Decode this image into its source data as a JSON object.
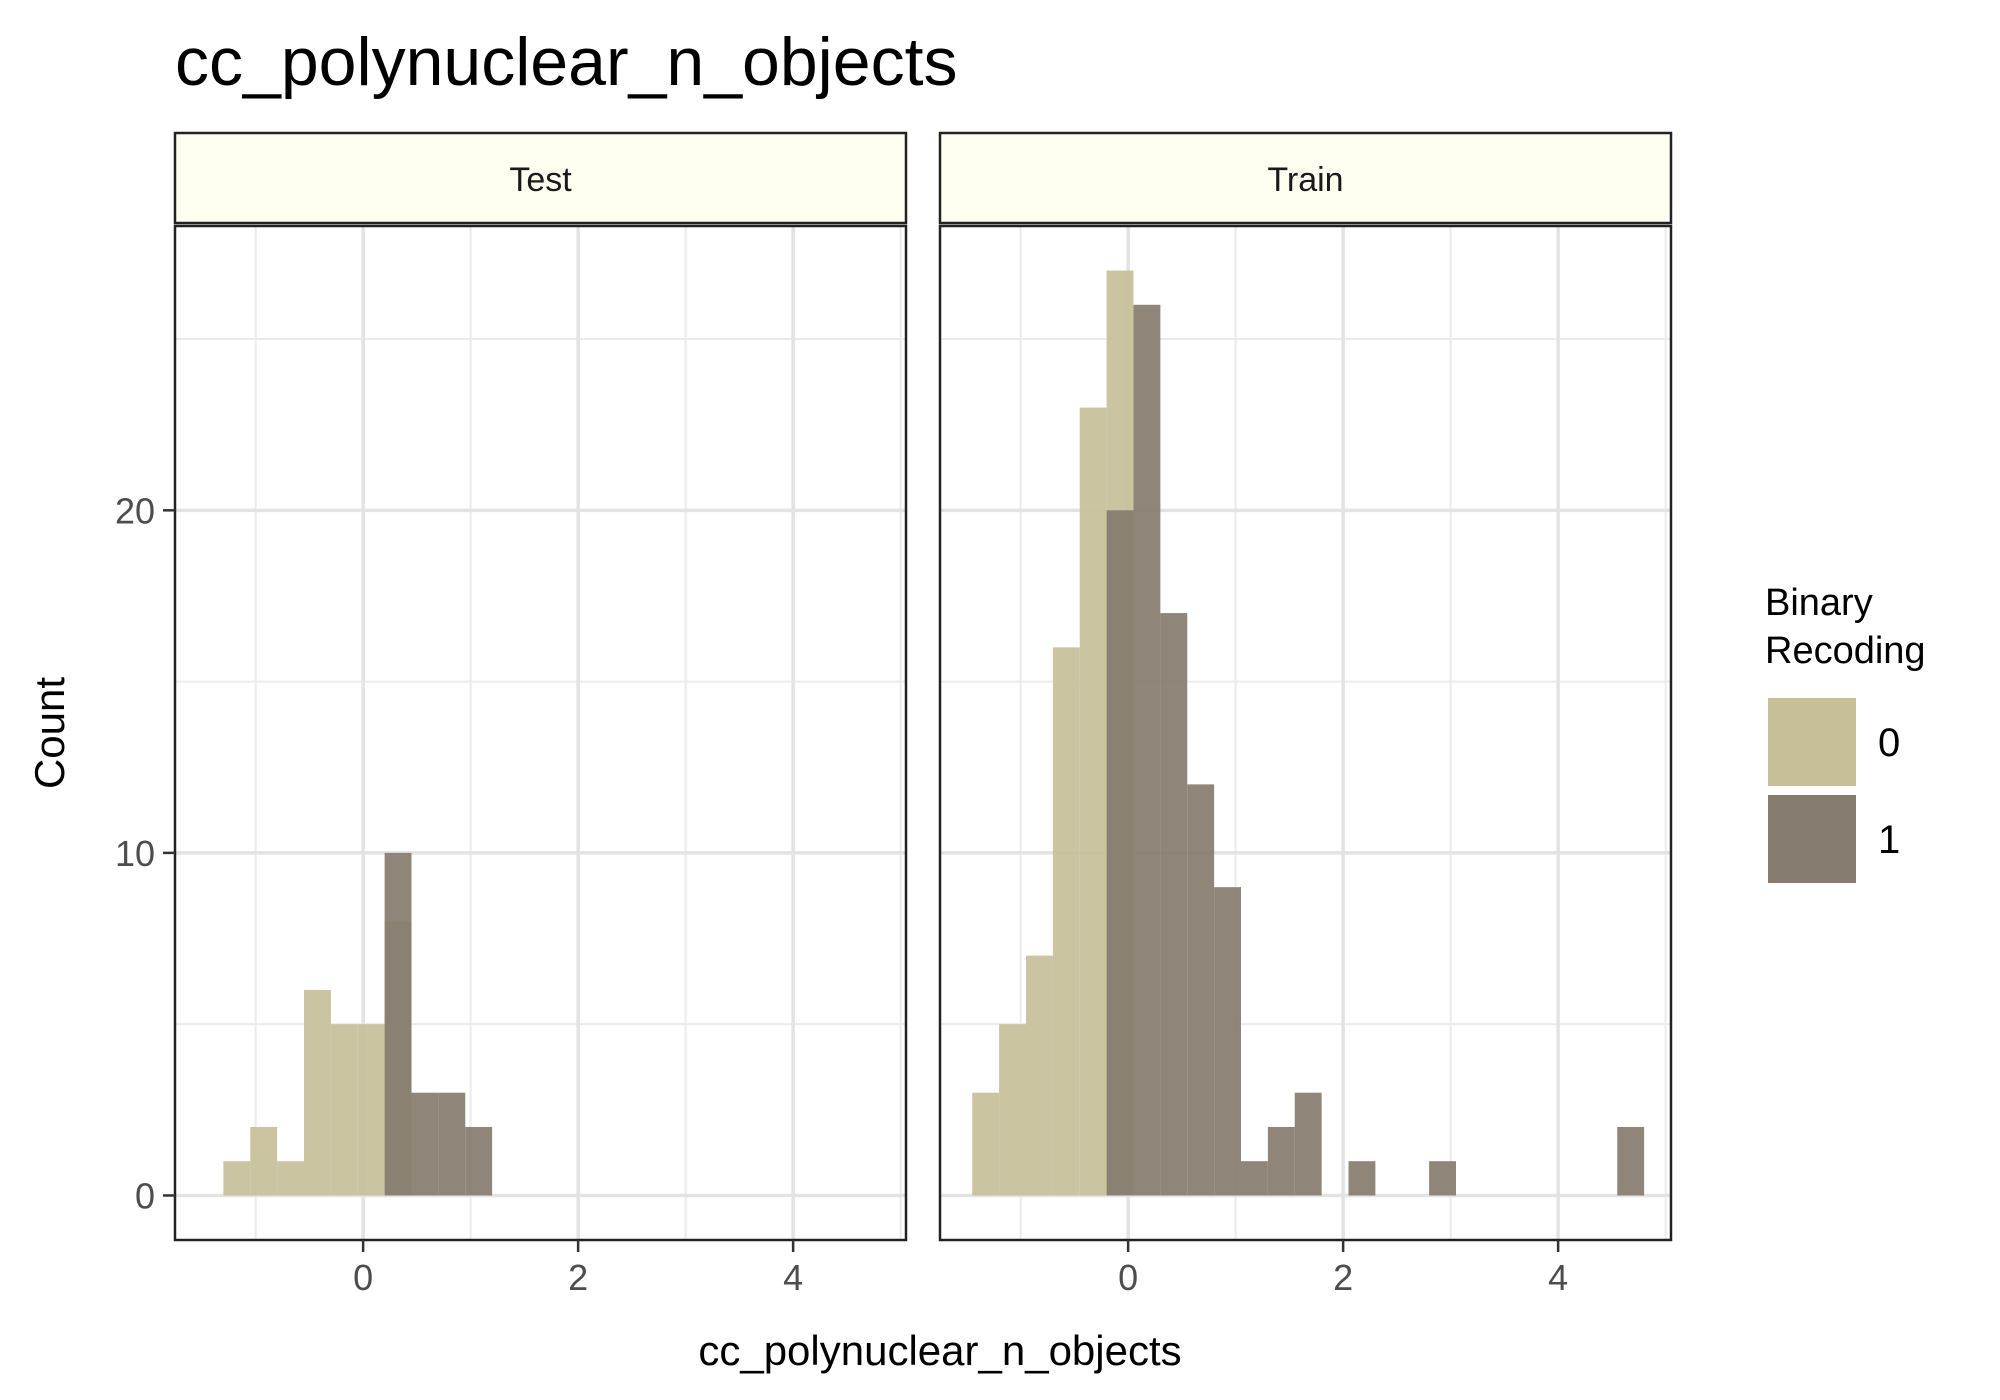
{
  "chart_data": {
    "type": "bar",
    "title": "cc_polynuclear_n_objects",
    "xlabel": "cc_polynuclear_n_objects",
    "ylabel": "Count",
    "xlim": [
      -1.75,
      5.05
    ],
    "ylim": [
      -1.3,
      28.3
    ],
    "x_ticks": [
      0,
      2,
      4
    ],
    "y_ticks": [
      0,
      10,
      20
    ],
    "bin_width": 0.25,
    "grid": true,
    "legend": {
      "title_lines": [
        "Binary",
        "Recoding"
      ],
      "placement": "right",
      "items": [
        {
          "label": "0",
          "color": "#c6bf98"
        },
        {
          "label": "1",
          "color": "#857b6e"
        }
      ]
    },
    "facets": [
      {
        "label": "Test",
        "bins": [
          {
            "x0": -1.3,
            "count": 1,
            "group": "0"
          },
          {
            "x0": -1.05,
            "count": 2,
            "group": "0"
          },
          {
            "x0": -0.8,
            "count": 1,
            "group": "0"
          },
          {
            "x0": -0.55,
            "count": 6,
            "group": "0"
          },
          {
            "x0": -0.3,
            "count": 5,
            "group": "0"
          },
          {
            "x0": -0.05,
            "count": 5,
            "group": "0"
          },
          {
            "x0": 0.2,
            "count": 8,
            "group": "0"
          },
          {
            "x0": 0.2,
            "count": 10,
            "group": "1"
          },
          {
            "x0": 0.45,
            "count": 3,
            "group": "1"
          },
          {
            "x0": 0.7,
            "count": 3,
            "group": "1"
          },
          {
            "x0": 0.95,
            "count": 2,
            "group": "1"
          }
        ]
      },
      {
        "label": "Train",
        "bins": [
          {
            "x0": -1.45,
            "count": 3,
            "group": "0"
          },
          {
            "x0": -1.2,
            "count": 5,
            "group": "0"
          },
          {
            "x0": -0.95,
            "count": 7,
            "group": "0"
          },
          {
            "x0": -0.7,
            "count": 16,
            "group": "0"
          },
          {
            "x0": -0.45,
            "count": 23,
            "group": "0"
          },
          {
            "x0": -0.2,
            "count": 27,
            "group": "0"
          },
          {
            "x0": -0.2,
            "count": 20,
            "group": "1"
          },
          {
            "x0": 0.05,
            "count": 26,
            "group": "1"
          },
          {
            "x0": 0.3,
            "count": 17,
            "group": "1"
          },
          {
            "x0": 0.55,
            "count": 12,
            "group": "1"
          },
          {
            "x0": 0.8,
            "count": 9,
            "group": "1"
          },
          {
            "x0": 1.05,
            "count": 1,
            "group": "1"
          },
          {
            "x0": 1.3,
            "count": 2,
            "group": "1"
          },
          {
            "x0": 1.55,
            "count": 3,
            "group": "1"
          },
          {
            "x0": 2.05,
            "count": 1,
            "group": "1"
          },
          {
            "x0": 2.8,
            "count": 1,
            "group": "1"
          },
          {
            "x0": 4.55,
            "count": 2,
            "group": "1"
          }
        ]
      }
    ]
  }
}
